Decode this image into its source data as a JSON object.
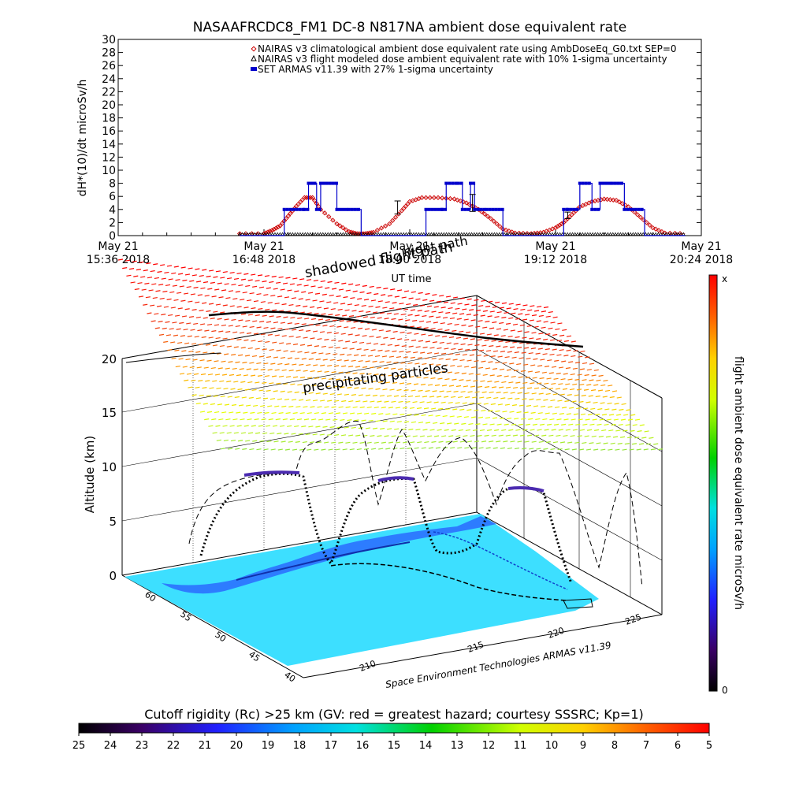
{
  "title": "NASAAFRCDC8_FM1 DC-8    N817NA ambient dose equivalent rate",
  "top_chart": {
    "type": "line",
    "ylabel": "dH*(10)/dt microSv/h",
    "xlabel": "UT time",
    "ylim": [
      0,
      30
    ],
    "yticks": [
      0,
      2,
      4,
      6,
      8,
      10,
      12,
      14,
      16,
      18,
      20,
      22,
      24,
      26,
      28,
      30
    ],
    "xticks": [
      {
        "t": 0,
        "line1": "May 21",
        "line2": "15:36 2018"
      },
      {
        "t": 72,
        "line1": "May 21",
        "line2": "16:48 2018"
      },
      {
        "t": 144,
        "line1": "May 21",
        "line2": "18:00 2018"
      },
      {
        "t": 216,
        "line1": "May 21",
        "line2": "19:12 2018"
      },
      {
        "t": 288,
        "line1": "May 21",
        "line2": "20:24 2018"
      }
    ],
    "legend": [
      {
        "label": "NAIRAS v3 climatological ambient dose equivalent rate using AmbDoseEq_G0.txt SEP=0",
        "color": "#cc0000",
        "marker": "diamond"
      },
      {
        "label": "NAIRAS v3 flight modeled dose ambient equivalent rate with 10% 1-sigma uncertainty",
        "color": "#000000",
        "marker": "triangle"
      },
      {
        "label": "SET ARMAS v11.39 with 27% 1-sigma uncertainty",
        "color": "#0000cc",
        "marker": "square"
      }
    ],
    "legend_position": "top-right"
  },
  "chart_data": [
    {
      "type": "line",
      "title": "NASAAFRCDC8_FM1 DC-8    N817NA ambient dose equivalent rate",
      "xlabel": "UT time",
      "ylabel": "dH*(10)/dt microSv/h",
      "ylim": [
        0,
        30
      ],
      "series": [
        {
          "name": "NAIRAS v3 climatological ambient dose equivalent rate using AmbDoseEq_G0.txt SEP=0",
          "x": [
            "16:36",
            "16:48",
            "16:52",
            "16:56",
            "17:00",
            "17:04",
            "17:08",
            "17:12",
            "17:16",
            "17:24",
            "17:30",
            "17:34",
            "17:38",
            "17:42",
            "17:50",
            "17:56",
            "18:00",
            "18:06",
            "18:14",
            "18:22",
            "18:28",
            "18:34",
            "18:40",
            "18:46",
            "18:52",
            "19:00",
            "19:06",
            "19:12",
            "19:16",
            "19:20",
            "19:24",
            "19:30",
            "19:36",
            "19:42",
            "19:48",
            "19:54",
            "20:00",
            "20:06",
            "20:16"
          ],
          "values": [
            0.3,
            0.3,
            0.8,
            1.5,
            3.0,
            4.5,
            5.8,
            5.8,
            4.0,
            1.8,
            0.6,
            0.3,
            0.3,
            0.5,
            1.8,
            3.8,
            5.2,
            5.8,
            5.8,
            5.6,
            5.0,
            4.0,
            2.6,
            1.0,
            0.4,
            0.3,
            0.5,
            1.2,
            2.0,
            3.2,
            4.4,
            5.2,
            5.6,
            5.4,
            4.4,
            2.8,
            1.2,
            0.4,
            0.3
          ]
        },
        {
          "name": "NAIRAS v3 flight modeled dose ambient equivalent rate with 10% 1-sigma uncertainty",
          "x": [
            "16:36",
            "20:16"
          ],
          "values": [
            0.2,
            0.2
          ]
        },
        {
          "name": "SET ARMAS v11.39 with 27% 1-sigma uncertainty",
          "x": [
            "16:36",
            "16:56",
            "16:58",
            "17:08",
            "17:10",
            "17:14",
            "17:16",
            "17:24",
            "17:30",
            "17:36",
            "17:42",
            "17:54",
            "18:06",
            "18:08",
            "18:16",
            "18:18",
            "18:24",
            "18:26",
            "18:30",
            "18:32",
            "18:38",
            "18:46",
            "19:00",
            "19:06",
            "19:10",
            "19:16",
            "19:18",
            "19:24",
            "19:30",
            "19:34",
            "19:40",
            "19:46",
            "19:50",
            "19:56",
            "20:16"
          ],
          "values": [
            0,
            0,
            4,
            4,
            8,
            4,
            8,
            4,
            4,
            0,
            0,
            0,
            0,
            4,
            4,
            8,
            8,
            4,
            8,
            4,
            4,
            0,
            0,
            0,
            0,
            4,
            4,
            8,
            4,
            8,
            8,
            4,
            4,
            0,
            0
          ]
        }
      ]
    },
    {
      "type": "scatter",
      "ylabel": "Altitude (km)",
      "zticks": [
        0,
        5,
        10,
        15,
        20
      ],
      "lat_ticks": [
        40,
        45,
        50,
        55,
        60
      ],
      "lon_ticks": [
        210,
        215,
        220,
        225
      ],
      "colorbar": {
        "min_label": "0",
        "max_label": "x",
        "label": "flight ambient dose equivalent rate microSv/h"
      },
      "annotations": [
        "precipitating particles",
        "shadowed flight path",
        "night path"
      ],
      "credit": "Space Environment Technologies ARMAS v11.39"
    },
    {
      "type": "heatmap",
      "title": "Cutoff rigidity (Rc) >25 km (GV: red = greatest hazard; courtesy SSSRC; Kp=1)",
      "ticks": [
        25,
        24,
        23,
        22,
        21,
        20,
        19,
        18,
        17,
        16,
        15,
        14,
        13,
        12,
        11,
        10,
        9,
        8,
        7,
        6,
        5
      ]
    }
  ],
  "panel3d": {
    "ylabel": "Altitude (km)",
    "zticks": [
      "0",
      "5",
      "10",
      "15",
      "20"
    ],
    "lat_ticks": [
      "40",
      "45",
      "50",
      "55",
      "60"
    ],
    "lon_ticks": [
      "210",
      "215",
      "220",
      "225"
    ],
    "annot_precip": "precipitating particles",
    "annot_shadow": "shadowed flight path",
    "annot_night": "night path",
    "credit": "Space Environment Technologies ARMAS v11.39"
  },
  "colorbar_right": {
    "label": "flight ambient dose equivalent rate microSv/h",
    "max_label": "x",
    "min_label": "0"
  },
  "colorbar_bottom": {
    "title": "Cutoff rigidity (Rc) >25 km (GV: red = greatest hazard; courtesy SSSRC; Kp=1)",
    "ticks": [
      "25",
      "24",
      "23",
      "22",
      "21",
      "20",
      "19",
      "18",
      "17",
      "16",
      "15",
      "14",
      "13",
      "12",
      "11",
      "10",
      "9",
      "8",
      "7",
      "6",
      "5"
    ]
  },
  "colors": {
    "nairas": "#cc0000",
    "model": "#000000",
    "armas": "#0000cc",
    "ocean": "#33ddff"
  }
}
